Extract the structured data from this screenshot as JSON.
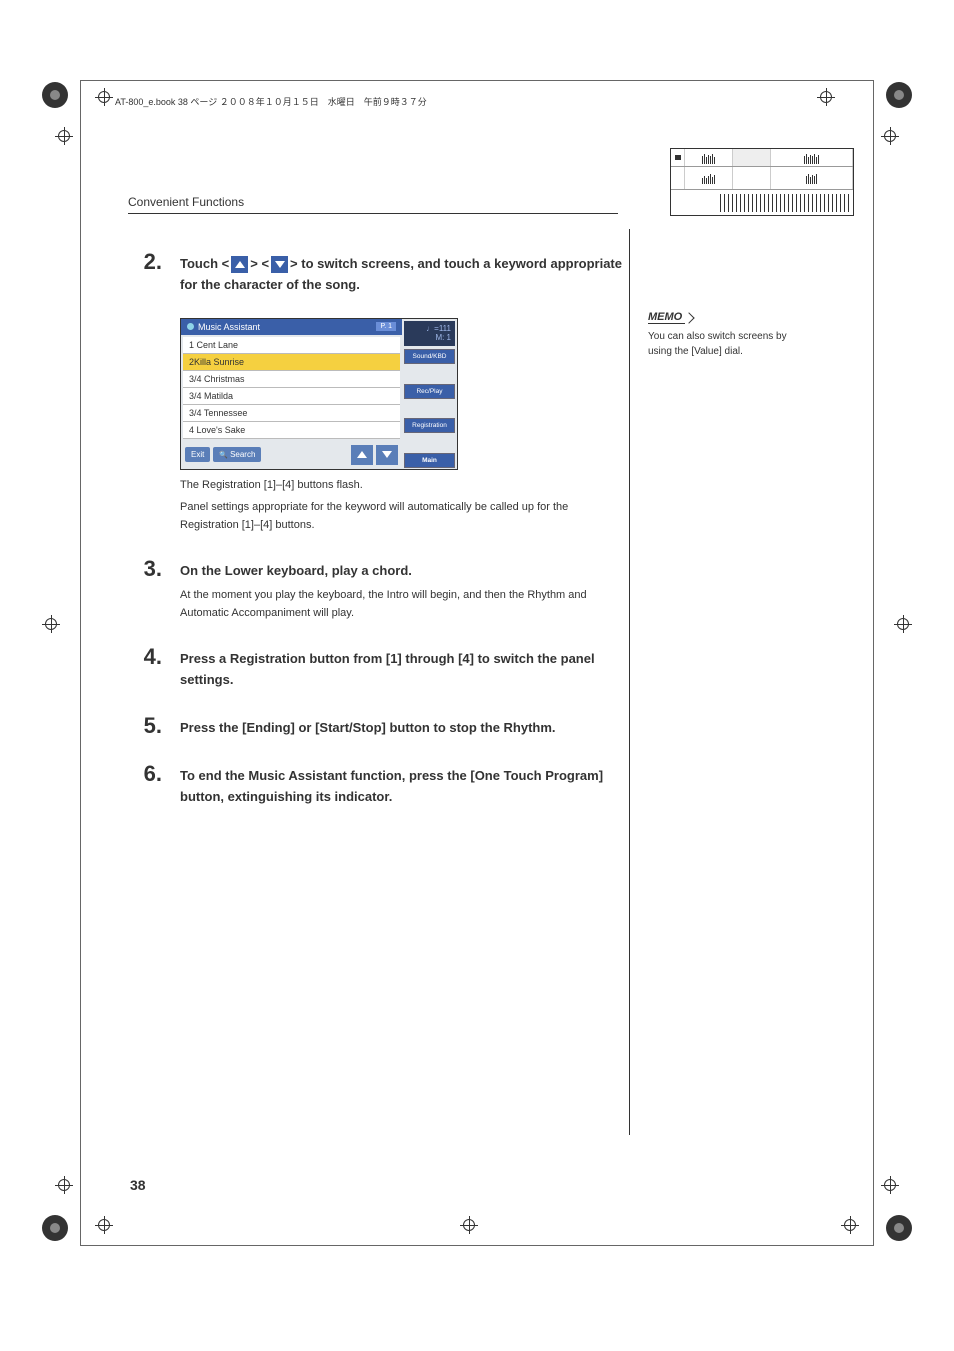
{
  "header": "AT-800_e.book  38 ページ  ２００８年１０月１５日　水曜日　午前９時３７分",
  "section_title": "Convenient Functions",
  "steps": {
    "n2": {
      "num": "2.",
      "heading_pre": "Touch <",
      "heading_mid": "> <",
      "heading_post": "> to switch screens, and touch a keyword appropriate for the character of the song.",
      "note1": "The Registration [1]–[4] buttons flash.",
      "note2": "Panel settings appropriate for the keyword will automatically be called up for the Registration [1]–[4] buttons."
    },
    "n3": {
      "num": "3.",
      "heading": "On the Lower keyboard, play a chord.",
      "text": "At the moment you play the keyboard, the Intro will begin, and then the Rhythm and Automatic Accompaniment will play."
    },
    "n4": {
      "num": "4.",
      "heading": "Press a Registration button from [1] through [4] to switch the panel settings."
    },
    "n5": {
      "num": "5.",
      "heading": "Press the [Ending] or [Start/Stop] button to stop the Rhythm."
    },
    "n6": {
      "num": "6.",
      "heading": "To end the Music Assistant function, press the [One Touch Program] button, extinguishing its indicator."
    }
  },
  "screenshot": {
    "title": "Music Assistant",
    "page": "P.  1",
    "tempo_line1": "♩=111",
    "tempo_line2": "M:    1",
    "rows": [
      "1 Cent Lane",
      "2Killa Sunrise",
      "3/4 Christmas",
      "3/4 Matilda",
      "3/4 Tennessee",
      "4 Love's Sake"
    ],
    "selected_index": 1,
    "btn_exit": "Exit",
    "btn_search": "Search",
    "side_btns": [
      "Sound/KBD",
      "Rec/Play",
      "Registration",
      "Main"
    ]
  },
  "memo": {
    "label": "MEMO",
    "text": "You can also switch screens by using the [Value] dial."
  },
  "page_number": "38"
}
